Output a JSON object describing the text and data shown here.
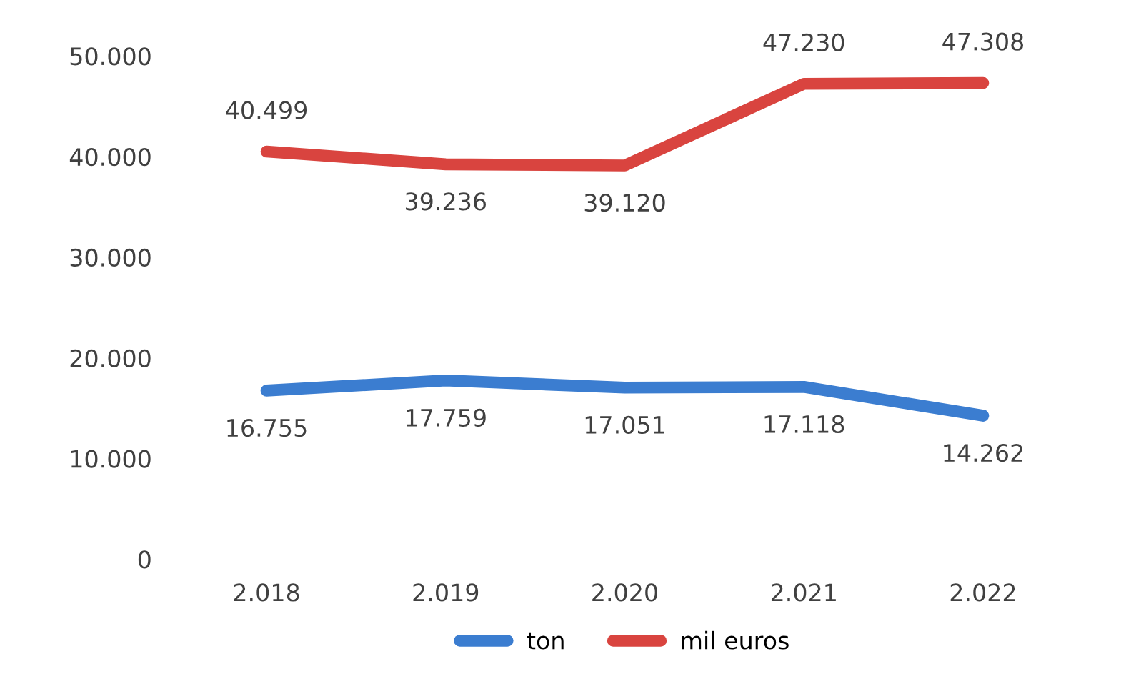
{
  "chart_data": {
    "type": "line",
    "categories": [
      "2.018",
      "2.019",
      "2.020",
      "2.021",
      "2.022"
    ],
    "series": [
      {
        "name": "ton",
        "color": "#3b7dd0",
        "values": [
          16755,
          17759,
          17051,
          17118,
          14262
        ],
        "value_labels": [
          "16.755",
          "17.759",
          "17.051",
          "17.118",
          "14.262"
        ]
      },
      {
        "name": "mil euros",
        "color": "#d9443f",
        "values": [
          40499,
          39236,
          39120,
          47230,
          47308
        ],
        "value_labels": [
          "40.499",
          "39.236",
          "39.120",
          "47.230",
          "47.308"
        ]
      }
    ],
    "ylim": [
      0,
      50000
    ],
    "yticks": [
      0,
      {
        "value": 10000,
        "label": "10.000"
      },
      {
        "value": 20000,
        "label": "20.000"
      },
      {
        "value": 30000,
        "label": "30.000"
      },
      {
        "value": 40000,
        "label": "40.000"
      },
      {
        "value": 50000,
        "label": "50.000"
      }
    ],
    "grid": false,
    "legend": "bottom",
    "marker": "none",
    "line_style": "solid"
  }
}
